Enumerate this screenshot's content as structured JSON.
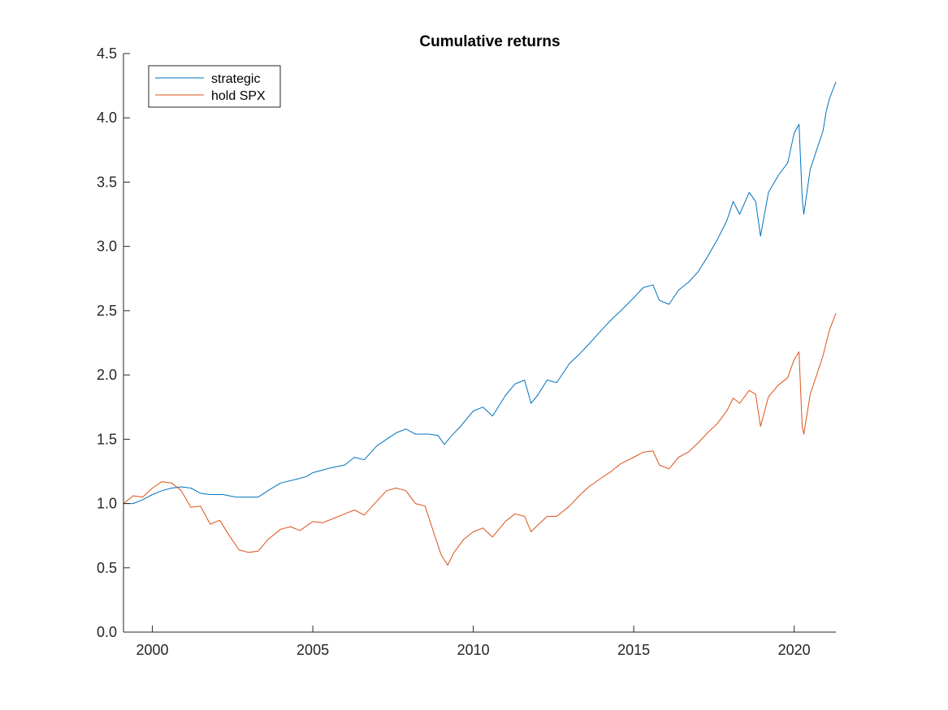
{
  "chart_data": {
    "type": "line",
    "title": "Cumulative returns",
    "xlabel": "",
    "ylabel": "",
    "xlim": [
      1999.1,
      2021.3
    ],
    "ylim": [
      0,
      4.5
    ],
    "x_ticks": [
      2000,
      2005,
      2010,
      2015,
      2020
    ],
    "x_tick_labels": [
      "2000",
      "2005",
      "2010",
      "2015",
      "2020"
    ],
    "y_ticks": [
      0,
      0.5,
      1,
      1.5,
      2,
      2.5,
      3,
      3.5,
      4,
      4.5
    ],
    "y_tick_labels": [
      "0.0",
      "0.5",
      "1.0",
      "1.5",
      "2.0",
      "2.5",
      "3.0",
      "3.5",
      "4.0",
      "4.5"
    ],
    "grid": false,
    "legend": "top-left",
    "series": [
      {
        "name": "strategic",
        "color": "#0072BD",
        "points": [
          [
            1999.1,
            1.0
          ],
          [
            1999.4,
            1.0
          ],
          [
            1999.7,
            1.03
          ],
          [
            2000.0,
            1.07
          ],
          [
            2000.3,
            1.1
          ],
          [
            2000.6,
            1.12
          ],
          [
            2000.9,
            1.13
          ],
          [
            2001.2,
            1.12
          ],
          [
            2001.5,
            1.08
          ],
          [
            2001.8,
            1.07
          ],
          [
            2002.2,
            1.07
          ],
          [
            2002.6,
            1.05
          ],
          [
            2003.0,
            1.05
          ],
          [
            2003.3,
            1.05
          ],
          [
            2003.6,
            1.1
          ],
          [
            2004.0,
            1.16
          ],
          [
            2004.5,
            1.19
          ],
          [
            2004.8,
            1.21
          ],
          [
            2005.0,
            1.24
          ],
          [
            2005.3,
            1.26
          ],
          [
            2005.6,
            1.28
          ],
          [
            2006.0,
            1.3
          ],
          [
            2006.3,
            1.36
          ],
          [
            2006.6,
            1.34
          ],
          [
            2007.0,
            1.45
          ],
          [
            2007.3,
            1.5
          ],
          [
            2007.6,
            1.55
          ],
          [
            2007.9,
            1.58
          ],
          [
            2008.2,
            1.54
          ],
          [
            2008.6,
            1.54
          ],
          [
            2008.9,
            1.53
          ],
          [
            2009.1,
            1.46
          ],
          [
            2009.3,
            1.52
          ],
          [
            2009.6,
            1.6
          ],
          [
            2010.0,
            1.72
          ],
          [
            2010.3,
            1.75
          ],
          [
            2010.6,
            1.68
          ],
          [
            2011.0,
            1.84
          ],
          [
            2011.3,
            1.93
          ],
          [
            2011.6,
            1.96
          ],
          [
            2011.8,
            1.78
          ],
          [
            2012.0,
            1.84
          ],
          [
            2012.3,
            1.96
          ],
          [
            2012.6,
            1.94
          ],
          [
            2013.0,
            2.09
          ],
          [
            2013.3,
            2.16
          ],
          [
            2013.6,
            2.24
          ],
          [
            2014.0,
            2.35
          ],
          [
            2014.3,
            2.43
          ],
          [
            2014.6,
            2.5
          ],
          [
            2015.0,
            2.6
          ],
          [
            2015.3,
            2.68
          ],
          [
            2015.6,
            2.7
          ],
          [
            2015.8,
            2.58
          ],
          [
            2016.1,
            2.55
          ],
          [
            2016.4,
            2.66
          ],
          [
            2016.7,
            2.72
          ],
          [
            2017.0,
            2.8
          ],
          [
            2017.3,
            2.92
          ],
          [
            2017.6,
            3.05
          ],
          [
            2017.9,
            3.2
          ],
          [
            2018.1,
            3.35
          ],
          [
            2018.3,
            3.25
          ],
          [
            2018.6,
            3.42
          ],
          [
            2018.8,
            3.35
          ],
          [
            2018.95,
            3.08
          ],
          [
            2019.2,
            3.42
          ],
          [
            2019.5,
            3.55
          ],
          [
            2019.8,
            3.65
          ],
          [
            2020.0,
            3.88
          ],
          [
            2020.15,
            3.95
          ],
          [
            2020.25,
            3.38
          ],
          [
            2020.3,
            3.25
          ],
          [
            2020.5,
            3.6
          ],
          [
            2020.7,
            3.75
          ],
          [
            2020.9,
            3.9
          ],
          [
            2021.0,
            4.05
          ],
          [
            2021.1,
            4.15
          ],
          [
            2021.3,
            4.28
          ]
        ]
      },
      {
        "name": "hold SPX",
        "color": "#D95319",
        "points": [
          [
            1999.1,
            1.0
          ],
          [
            1999.4,
            1.06
          ],
          [
            1999.7,
            1.05
          ],
          [
            2000.0,
            1.12
          ],
          [
            2000.3,
            1.17
          ],
          [
            2000.6,
            1.16
          ],
          [
            2000.9,
            1.1
          ],
          [
            2001.2,
            0.97
          ],
          [
            2001.5,
            0.98
          ],
          [
            2001.8,
            0.84
          ],
          [
            2002.1,
            0.87
          ],
          [
            2002.4,
            0.75
          ],
          [
            2002.7,
            0.64
          ],
          [
            2003.0,
            0.62
          ],
          [
            2003.3,
            0.63
          ],
          [
            2003.6,
            0.72
          ],
          [
            2004.0,
            0.8
          ],
          [
            2004.3,
            0.82
          ],
          [
            2004.6,
            0.79
          ],
          [
            2005.0,
            0.86
          ],
          [
            2005.3,
            0.85
          ],
          [
            2005.6,
            0.88
          ],
          [
            2006.0,
            0.92
          ],
          [
            2006.3,
            0.95
          ],
          [
            2006.6,
            0.91
          ],
          [
            2007.0,
            1.02
          ],
          [
            2007.3,
            1.1
          ],
          [
            2007.6,
            1.12
          ],
          [
            2007.9,
            1.1
          ],
          [
            2008.2,
            1.0
          ],
          [
            2008.5,
            0.98
          ],
          [
            2008.8,
            0.75
          ],
          [
            2009.0,
            0.6
          ],
          [
            2009.2,
            0.52
          ],
          [
            2009.4,
            0.62
          ],
          [
            2009.7,
            0.72
          ],
          [
            2010.0,
            0.78
          ],
          [
            2010.3,
            0.81
          ],
          [
            2010.6,
            0.74
          ],
          [
            2011.0,
            0.86
          ],
          [
            2011.3,
            0.92
          ],
          [
            2011.6,
            0.9
          ],
          [
            2011.8,
            0.78
          ],
          [
            2012.0,
            0.83
          ],
          [
            2012.3,
            0.9
          ],
          [
            2012.6,
            0.9
          ],
          [
            2013.0,
            0.98
          ],
          [
            2013.3,
            1.06
          ],
          [
            2013.6,
            1.13
          ],
          [
            2014.0,
            1.2
          ],
          [
            2014.3,
            1.25
          ],
          [
            2014.6,
            1.31
          ],
          [
            2015.0,
            1.36
          ],
          [
            2015.3,
            1.4
          ],
          [
            2015.6,
            1.41
          ],
          [
            2015.8,
            1.3
          ],
          [
            2016.1,
            1.27
          ],
          [
            2016.4,
            1.36
          ],
          [
            2016.7,
            1.4
          ],
          [
            2017.0,
            1.47
          ],
          [
            2017.3,
            1.55
          ],
          [
            2017.6,
            1.62
          ],
          [
            2017.9,
            1.72
          ],
          [
            2018.1,
            1.82
          ],
          [
            2018.3,
            1.78
          ],
          [
            2018.6,
            1.88
          ],
          [
            2018.8,
            1.85
          ],
          [
            2018.95,
            1.6
          ],
          [
            2019.2,
            1.83
          ],
          [
            2019.5,
            1.92
          ],
          [
            2019.8,
            1.98
          ],
          [
            2020.0,
            2.12
          ],
          [
            2020.15,
            2.18
          ],
          [
            2020.25,
            1.6
          ],
          [
            2020.3,
            1.54
          ],
          [
            2020.5,
            1.85
          ],
          [
            2020.7,
            2.0
          ],
          [
            2020.9,
            2.15
          ],
          [
            2021.0,
            2.25
          ],
          [
            2021.1,
            2.35
          ],
          [
            2021.3,
            2.48
          ]
        ]
      }
    ]
  }
}
